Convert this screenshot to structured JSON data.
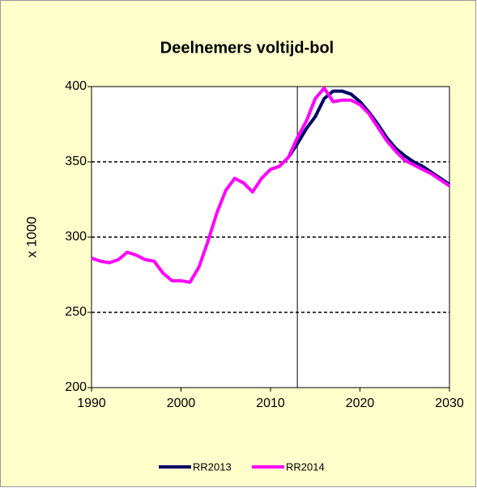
{
  "chart_data": {
    "type": "line",
    "title": "Deelnemers voltijd-bol",
    "y_label": "x 1000",
    "x": [
      1990,
      1991,
      1992,
      1993,
      1994,
      1995,
      1996,
      1997,
      1998,
      1999,
      2000,
      2001,
      2002,
      2003,
      2004,
      2005,
      2006,
      2007,
      2008,
      2009,
      2010,
      2011,
      2012,
      2013,
      2014,
      2015,
      2016,
      2017,
      2018,
      2019,
      2020,
      2021,
      2022,
      2023,
      2024,
      2025,
      2026,
      2027,
      2028,
      2029,
      2030
    ],
    "series": [
      {
        "name": "RR2013",
        "color": "#000066",
        "values": [
          null,
          null,
          null,
          null,
          null,
          null,
          null,
          null,
          null,
          null,
          null,
          null,
          null,
          null,
          null,
          null,
          null,
          null,
          null,
          null,
          null,
          null,
          353,
          362,
          372,
          380,
          392,
          397,
          397,
          395,
          390,
          383,
          375,
          366,
          359,
          354,
          350,
          347,
          343,
          339,
          335
        ]
      },
      {
        "name": "RR2014",
        "color": "#ff00ff",
        "values": [
          286,
          284,
          283,
          285,
          290,
          288,
          285,
          284,
          276,
          271,
          271,
          270,
          280,
          297,
          316,
          331,
          339,
          336,
          330,
          339,
          345,
          347,
          353,
          366,
          377,
          392,
          399,
          390,
          391,
          391,
          388,
          382,
          373,
          364,
          357,
          351,
          348,
          345,
          342,
          338,
          334
        ]
      }
    ],
    "vline": 2013,
    "xlim": [
      1990,
      2030
    ],
    "xticks": [
      1990,
      2000,
      2010,
      2020,
      2030
    ],
    "ylim": [
      200,
      400
    ],
    "yticks": [
      200,
      250,
      300,
      350,
      400
    ],
    "grid": true,
    "legend": "bottom"
  }
}
